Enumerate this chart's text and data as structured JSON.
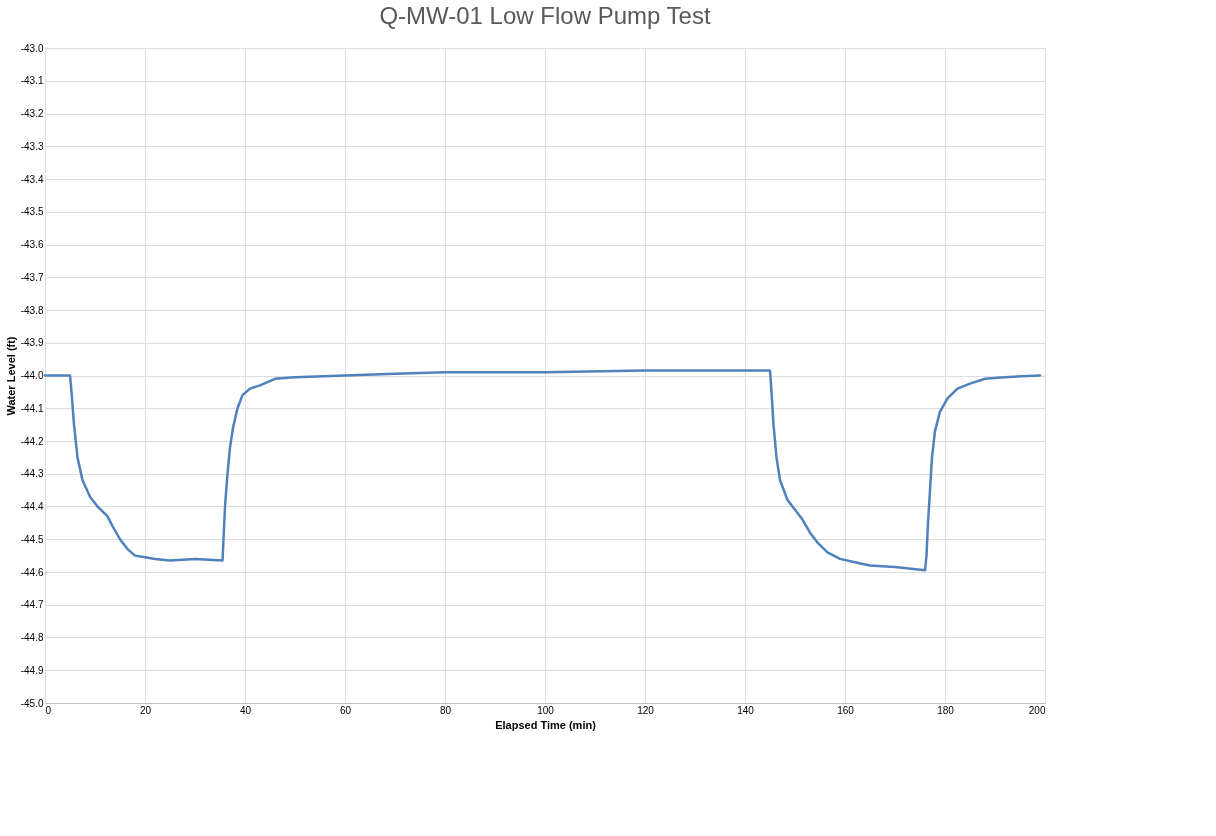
{
  "chart_data": {
    "type": "line",
    "title": "Q-MW-01 Low Flow Pump Test",
    "xlabel": "Elapsed Time (min)",
    "ylabel": "Water Level (ft)",
    "x": [
      0,
      5,
      5.3,
      5.8,
      6.5,
      7.5,
      9,
      10.5,
      12.5,
      13.5,
      15,
      16.5,
      18,
      20,
      22,
      25,
      30,
      35.5,
      35.7,
      36,
      36.5,
      37,
      37.6,
      38.5,
      39.5,
      41,
      43,
      46,
      50,
      60,
      70,
      80,
      100,
      120,
      130,
      145,
      145.3,
      145.7,
      146.3,
      147,
      148.5,
      150,
      151.5,
      153,
      154.5,
      156.5,
      159,
      162,
      165,
      170,
      176,
      176.3,
      176.6,
      177,
      177.4,
      178,
      179,
      180.5,
      182.5,
      185,
      188,
      192,
      199
    ],
    "series": [
      {
        "color": "#4f81bd",
        "values": [
          -44.0,
          -44.0,
          -44.05,
          -44.15,
          -44.25,
          -44.32,
          -44.37,
          -44.4,
          -44.43,
          -44.46,
          -44.5,
          -44.53,
          -44.55,
          -44.555,
          -44.56,
          -44.565,
          -44.56,
          -44.565,
          -44.5,
          -44.4,
          -44.3,
          -44.22,
          -44.16,
          -44.1,
          -44.06,
          -44.04,
          -44.03,
          -44.01,
          -44.005,
          -44.0,
          -43.995,
          -43.99,
          -43.99,
          -43.985,
          -43.985,
          -43.985,
          -44.05,
          -44.15,
          -44.25,
          -44.32,
          -44.38,
          -44.41,
          -44.44,
          -44.48,
          -44.51,
          -44.54,
          -44.56,
          -44.57,
          -44.58,
          -44.585,
          -44.595,
          -44.55,
          -44.45,
          -44.35,
          -44.25,
          -44.17,
          -44.11,
          -44.07,
          -44.04,
          -44.025,
          -44.01,
          -44.005,
          -44.0
        ]
      }
    ],
    "xlim": [
      0,
      200
    ],
    "xticks": [
      0,
      20,
      40,
      60,
      80,
      100,
      120,
      140,
      160,
      180,
      200
    ],
    "ylim": [
      -45.0,
      -43.0
    ],
    "yticks": [
      {
        "value": -45.0,
        "label": "-45.0"
      },
      {
        "value": -44.9,
        "label": "-44.9"
      },
      {
        "value": -44.8,
        "label": "-44.8"
      },
      {
        "value": -44.7,
        "label": "-44.7"
      },
      {
        "value": -44.6,
        "label": "-44.6"
      },
      {
        "value": -44.5,
        "label": "-44.5"
      },
      {
        "value": -44.4,
        "label": "-44.4"
      },
      {
        "value": -44.3,
        "label": "-44.3"
      },
      {
        "value": -44.2,
        "label": "-44.2"
      },
      {
        "value": -44.1,
        "label": "-44.1"
      },
      {
        "value": -44.0,
        "label": "-44.0"
      },
      {
        "value": -43.9,
        "label": "-43.9"
      },
      {
        "value": -43.8,
        "label": "-43.8"
      },
      {
        "value": -43.7,
        "label": "-43.7"
      },
      {
        "value": -43.6,
        "label": "-43.6"
      },
      {
        "value": -43.5,
        "label": "-43.5"
      },
      {
        "value": -43.4,
        "label": "-43.4"
      },
      {
        "value": -43.3,
        "label": "-43.3"
      },
      {
        "value": -43.2,
        "label": "-43.2"
      },
      {
        "value": -43.1,
        "label": "-43.1"
      },
      {
        "value": -43.0,
        "label": "-43.0"
      }
    ],
    "grid": true,
    "legend": false,
    "marker": "none",
    "line_style": "solid"
  }
}
